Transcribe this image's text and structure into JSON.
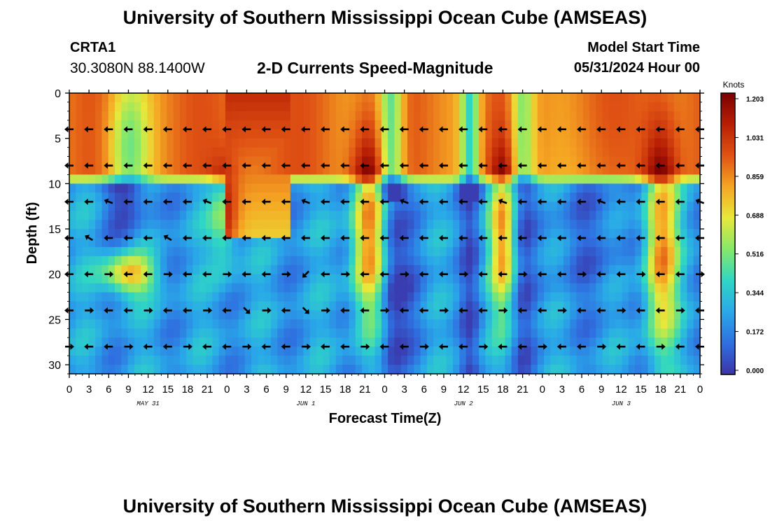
{
  "header": {
    "title": "University of Southern Mississippi Ocean Cube (AMSEAS)",
    "station_id": "CRTA1",
    "station_coords": "30.3080N  88.1400W",
    "plot_title": "2-D Currents Speed-Magnitude",
    "model_start_label": "Model Start Time",
    "model_start_value": "05/31/2024 Hour 00"
  },
  "footer": {
    "title": "University of Southern Mississippi Ocean Cube (AMSEAS)"
  },
  "chart_data": {
    "type": "heatmap",
    "title": "2-D Currents Speed-Magnitude",
    "xlabel": "Forecast Time(Z)",
    "ylabel": "Depth (ft)",
    "x_range_hours": [
      0,
      96
    ],
    "y_range_ft": [
      0,
      31
    ],
    "x_tick_labels": [
      "0",
      "3",
      "6",
      "9",
      "12",
      "15",
      "18",
      "21",
      "0",
      "3",
      "6",
      "9",
      "12",
      "15",
      "18",
      "21",
      "0",
      "3",
      "6",
      "9",
      "12",
      "15",
      "18",
      "21",
      "0",
      "3",
      "6",
      "9",
      "12",
      "15",
      "18",
      "21",
      "0"
    ],
    "y_ticks": [
      0,
      5,
      10,
      15,
      20,
      25,
      30
    ],
    "day_labels": [
      {
        "hour": 12,
        "label": "MAY 31"
      },
      {
        "hour": 36,
        "label": "JUN 1"
      },
      {
        "hour": 60,
        "label": "JUN 2"
      },
      {
        "hour": 84,
        "label": "JUN 3"
      }
    ],
    "colorbar": {
      "unit": "Knots",
      "min": 0.0,
      "max": 1.203,
      "tick_labels": [
        "1.203",
        "1.031",
        "0.859",
        "0.688",
        "0.516",
        "0.344",
        "0.172",
        "0.000"
      ]
    },
    "vector_depths_ft": [
      4,
      8,
      12,
      16,
      20,
      24,
      28
    ],
    "vector_times_hours": [
      0,
      3,
      6,
      9,
      12,
      15,
      18,
      21,
      24,
      27,
      30,
      33,
      36,
      39,
      42,
      45,
      48,
      51,
      54,
      57,
      60,
      63,
      66,
      69,
      72,
      75,
      78,
      81,
      84,
      87,
      90,
      93,
      96
    ],
    "colors": {
      "scale": [
        "#3b34a8",
        "#2f6fe0",
        "#29a8e8",
        "#2fd6c4",
        "#84e86a",
        "#e8e83a",
        "#f5a623",
        "#e05314",
        "#b81f05",
        "#7a0000"
      ]
    }
  }
}
